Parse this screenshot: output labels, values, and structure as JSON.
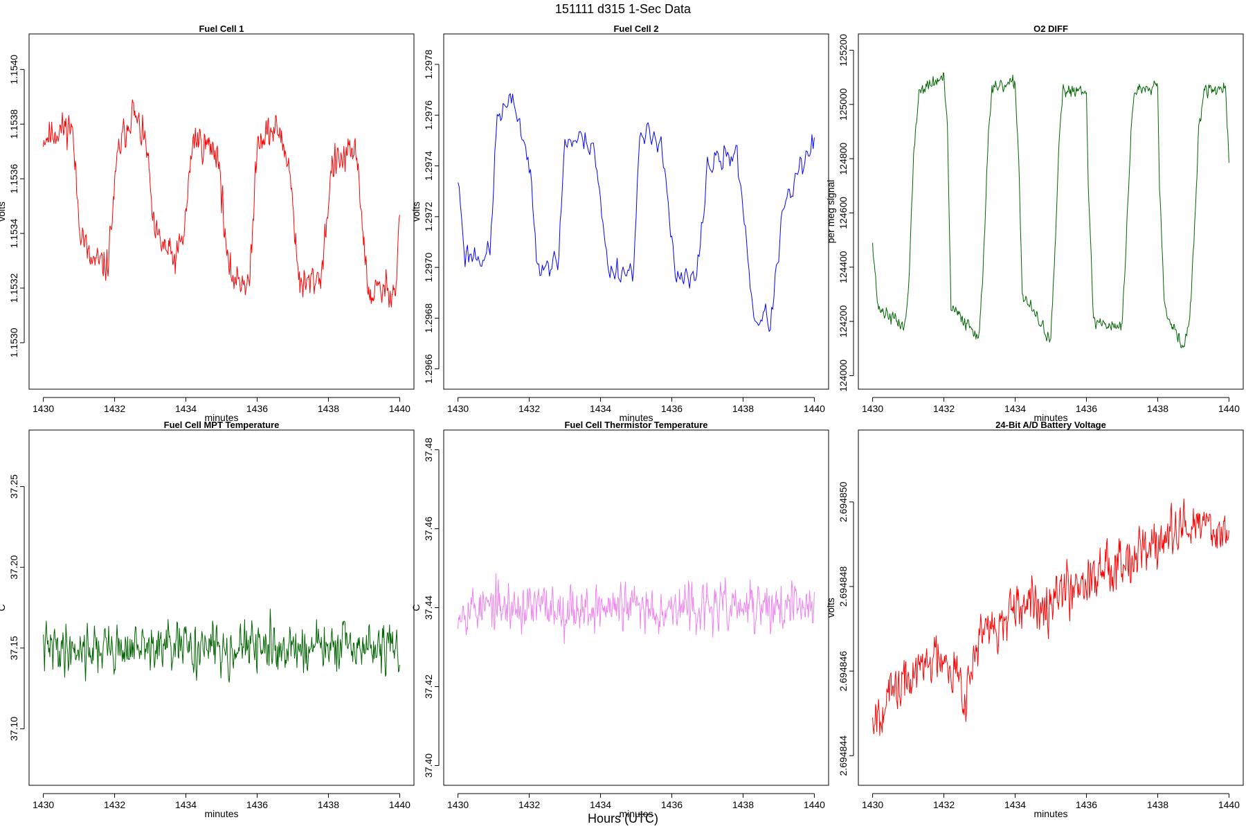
{
  "figure": {
    "title": "151111   d315   1-Sec Data",
    "xlabel": "Hours (UTC)"
  },
  "chart_data": [
    {
      "type": "line",
      "title": "Fuel Cell 1",
      "xlabel": "minutes",
      "ylabel": "volts",
      "color": "#ff0000",
      "xlim": [
        1429.6,
        1440.4
      ],
      "ylim": [
        1.15283,
        1.15413
      ],
      "xticks": [
        "1430",
        "1432",
        "1434",
        "1436",
        "1438",
        "1440"
      ],
      "yticks": [
        "1.1530",
        "1.1532",
        "1.1534",
        "1.1536",
        "1.1538",
        "1.1540"
      ],
      "profile": [
        [
          1430.0,
          1.15375
        ],
        [
          1430.8,
          1.1538
        ],
        [
          1431.0,
          1.15345
        ],
        [
          1431.3,
          1.1533
        ],
        [
          1431.8,
          1.15328
        ],
        [
          1432.1,
          1.1537
        ],
        [
          1432.5,
          1.15385
        ],
        [
          1432.9,
          1.15372
        ],
        [
          1433.1,
          1.1534
        ],
        [
          1433.7,
          1.1533
        ],
        [
          1433.95,
          1.1534
        ],
        [
          1434.2,
          1.15375
        ],
        [
          1434.9,
          1.1537
        ],
        [
          1435.2,
          1.15325
        ],
        [
          1435.8,
          1.15322
        ],
        [
          1436.0,
          1.15375
        ],
        [
          1436.6,
          1.15378
        ],
        [
          1436.9,
          1.15365
        ],
        [
          1437.2,
          1.1532
        ],
        [
          1437.8,
          1.15325
        ],
        [
          1438.1,
          1.15365
        ],
        [
          1438.8,
          1.1537
        ],
        [
          1439.1,
          1.15318
        ],
        [
          1439.9,
          1.1532
        ],
        [
          1440.0,
          1.1535
        ]
      ],
      "noise": 0.00012,
      "step_sec": 1,
      "seed": 11
    },
    {
      "type": "line",
      "title": "Fuel Cell 2",
      "xlabel": "minutes",
      "ylabel": "volts",
      "color": "#0000ff",
      "xlim": [
        1429.6,
        1440.4
      ],
      "ylim": [
        1.29652,
        1.29792
      ],
      "xticks": [
        "1430",
        "1432",
        "1434",
        "1436",
        "1438",
        "1440"
      ],
      "yticks": [
        "1.2966",
        "1.2968",
        "1.2970",
        "1.2972",
        "1.2974",
        "1.2976",
        "1.2978"
      ],
      "profile": [
        [
          1430.0,
          1.29735
        ],
        [
          1430.2,
          1.29705
        ],
        [
          1430.9,
          1.29705
        ],
        [
          1431.1,
          1.2976
        ],
        [
          1431.6,
          1.29765
        ],
        [
          1432.0,
          1.2974
        ],
        [
          1432.2,
          1.29705
        ],
        [
          1432.8,
          1.297
        ],
        [
          1433.0,
          1.2975
        ],
        [
          1433.8,
          1.2975
        ],
        [
          1434.0,
          1.29725
        ],
        [
          1434.2,
          1.297
        ],
        [
          1434.9,
          1.29698
        ],
        [
          1435.1,
          1.2975
        ],
        [
          1435.7,
          1.29752
        ],
        [
          1435.9,
          1.29725
        ],
        [
          1436.1,
          1.29695
        ],
        [
          1436.7,
          1.29695
        ],
        [
          1437.0,
          1.2974
        ],
        [
          1437.8,
          1.29745
        ],
        [
          1438.0,
          1.29725
        ],
        [
          1438.3,
          1.2968
        ],
        [
          1438.8,
          1.2968
        ],
        [
          1439.1,
          1.2972
        ],
        [
          1439.5,
          1.29735
        ],
        [
          1440.0,
          1.2975
        ]
      ],
      "noise": 0.00011,
      "step_sec": 2,
      "seed": 23
    },
    {
      "type": "line",
      "title": "O2 DIFF",
      "xlabel": "minutes",
      "ylabel": "per meg signal",
      "color": "#006400",
      "xlim": [
        1429.6,
        1440.4
      ],
      "ylim": [
        123950,
        125260
      ],
      "xticks": [
        "1430",
        "1432",
        "1434",
        "1436",
        "1438",
        "1440"
      ],
      "yticks": [
        "124000",
        "124200",
        "124400",
        "124600",
        "124800",
        "125000",
        "125200"
      ],
      "profile": [
        [
          1430.0,
          124500
        ],
        [
          1430.15,
          124250
        ],
        [
          1430.9,
          124180
        ],
        [
          1431.0,
          124300
        ],
        [
          1431.15,
          124800
        ],
        [
          1431.3,
          125050
        ],
        [
          1432.0,
          125100
        ],
        [
          1432.1,
          124900
        ],
        [
          1432.2,
          124250
        ],
        [
          1433.0,
          124150
        ],
        [
          1433.1,
          124400
        ],
        [
          1433.25,
          124900
        ],
        [
          1433.35,
          125050
        ],
        [
          1434.0,
          125080
        ],
        [
          1434.1,
          124800
        ],
        [
          1434.2,
          124300
        ],
        [
          1435.0,
          124130
        ],
        [
          1435.1,
          124400
        ],
        [
          1435.25,
          124900
        ],
        [
          1435.35,
          125050
        ],
        [
          1436.0,
          125060
        ],
        [
          1436.05,
          124700
        ],
        [
          1436.2,
          124200
        ],
        [
          1437.0,
          124180
        ],
        [
          1437.1,
          124450
        ],
        [
          1437.25,
          124900
        ],
        [
          1437.35,
          125050
        ],
        [
          1438.0,
          125080
        ],
        [
          1438.05,
          124700
        ],
        [
          1438.2,
          124250
        ],
        [
          1438.7,
          124100
        ],
        [
          1438.9,
          124200
        ],
        [
          1439.0,
          124450
        ],
        [
          1439.15,
          124900
        ],
        [
          1439.3,
          125050
        ],
        [
          1439.9,
          125060
        ],
        [
          1440.0,
          124780
        ]
      ],
      "noise": 50,
      "step_sec": 1,
      "seed": 37
    },
    {
      "type": "line",
      "title": "Fuel Cell MPT Temperature",
      "xlabel": "minutes",
      "ylabel": "C",
      "color": "#006400",
      "xlim": [
        1429.6,
        1440.4
      ],
      "ylim": [
        37.065,
        37.285
      ],
      "xticks": [
        "1430",
        "1432",
        "1434",
        "1436",
        "1438",
        "1440"
      ],
      "yticks": [
        "37.10",
        "37.15",
        "37.20",
        "37.25"
      ],
      "profile": [
        [
          1430.0,
          37.15
        ],
        [
          1440.0,
          37.15
        ]
      ],
      "noise": 0.03,
      "step_sec": 1,
      "seed": 41
    },
    {
      "type": "line",
      "title": "Fuel Cell Thermistor Temperature",
      "xlabel": "minutes",
      "ylabel": "C",
      "color": "#ee82ee",
      "xlim": [
        1429.6,
        1440.4
      ],
      "ylim": [
        37.395,
        37.485
      ],
      "xticks": [
        "1430",
        "1432",
        "1434",
        "1436",
        "1438",
        "1440"
      ],
      "yticks": [
        "37.40",
        "37.42",
        "37.44",
        "37.46",
        "37.48"
      ],
      "profile": [
        [
          1430.0,
          37.44
        ],
        [
          1440.0,
          37.44
        ]
      ],
      "noise": 0.012,
      "step_sec": 1,
      "seed": 53
    },
    {
      "type": "line",
      "title": "24-Bit A/D Battery Voltage",
      "xlabel": "minutes",
      "ylabel": "volts",
      "color": "#ff0000",
      "xlim": [
        1429.6,
        1440.4
      ],
      "ylim": [
        2.6948433,
        2.6948517
      ],
      "xticks": [
        "1430",
        "1432",
        "1434",
        "1436",
        "1438",
        "1440"
      ],
      "yticks": [
        "2.694844",
        "2.694846",
        "2.694848",
        "2.694850"
      ],
      "profile": [
        [
          1430.0,
          2.694845
        ],
        [
          1431.0,
          2.6948458
        ],
        [
          1432.0,
          2.6948465
        ],
        [
          1432.6,
          2.6948455
        ],
        [
          1433.0,
          2.6948468
        ],
        [
          1435.0,
          2.6948478
        ],
        [
          1436.0,
          2.6948482
        ],
        [
          1437.0,
          2.6948487
        ],
        [
          1438.0,
          2.694849
        ],
        [
          1439.0,
          2.6948495
        ],
        [
          1440.0,
          2.6948493
        ]
      ],
      "noise": 1.2e-06,
      "step_sec": 1,
      "seed": 67
    }
  ]
}
